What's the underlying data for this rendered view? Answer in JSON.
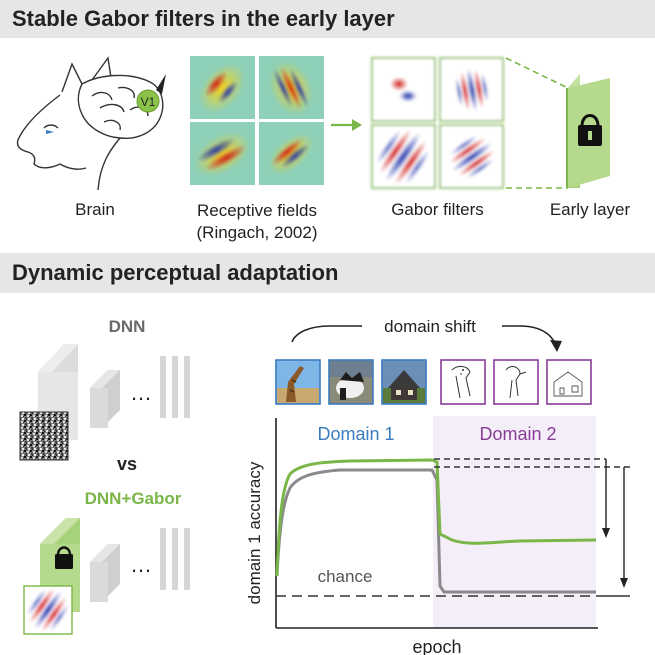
{
  "panel_top": {
    "title": "Stable Gabor filters in the early layer",
    "brain_label": "Brain",
    "v1_tag": "V1",
    "rf_label_line1": "Receptive fields",
    "rf_label_line2": "(Ringach, 2002)",
    "gabor_label": "Gabor filters",
    "early_label": "Early layer"
  },
  "panel_bottom": {
    "title": "Dynamic perceptual adaptation",
    "dnn_label": "DNN",
    "vs_label": "vs",
    "dnn_gabor_label": "DNN+Gabor",
    "ellipsis": "…",
    "domain_shift_label": "domain shift"
  },
  "colors": {
    "green": "#7ab648",
    "gray": "#8a8a8a",
    "blue_text": "#3a7cbf",
    "purple_text": "#8a3c9a",
    "domain2_bg": "#f3eef7"
  },
  "chart_data": {
    "type": "line",
    "xlabel": "epoch",
    "ylabel": "domain 1 accuracy",
    "regions": [
      "Domain 1",
      "Domain 2"
    ],
    "chance_label": "chance",
    "series": [
      {
        "name": "DNN+Gabor",
        "color": "#7ab648",
        "phase1_plateau": "high",
        "phase2_level": "moderate (retains accuracy)"
      },
      {
        "name": "DNN",
        "color": "#8a8a8a",
        "phase1_plateau": "slightly lower",
        "phase2_level": "drops to chance"
      }
    ]
  }
}
